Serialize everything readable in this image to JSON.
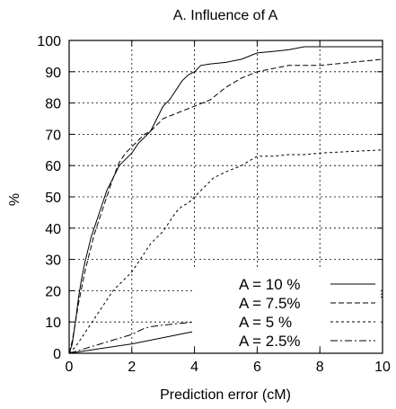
{
  "chart_data": {
    "type": "line",
    "title": "A. Influence of A",
    "xlabel": "Prediction error (cM)",
    "ylabel": "%",
    "xlim": [
      0,
      10
    ],
    "ylim": [
      0,
      100
    ],
    "x_ticks": [
      0,
      2,
      4,
      6,
      8,
      10
    ],
    "y_ticks": [
      0,
      10,
      20,
      30,
      40,
      50,
      60,
      70,
      80,
      90,
      100
    ],
    "grid": true,
    "legend_position": "bottom-right",
    "series": [
      {
        "name": "A = 10   %",
        "dash": "",
        "points": [
          [
            0,
            0
          ],
          [
            0.1,
            3
          ],
          [
            0.2,
            10
          ],
          [
            0.3,
            18
          ],
          [
            0.4,
            24
          ],
          [
            0.5,
            29
          ],
          [
            0.6,
            33
          ],
          [
            0.7,
            37
          ],
          [
            0.8,
            40
          ],
          [
            0.9,
            43
          ],
          [
            1.0,
            46
          ],
          [
            1.1,
            49
          ],
          [
            1.2,
            52
          ],
          [
            1.4,
            56
          ],
          [
            1.6,
            60
          ],
          [
            1.8,
            62
          ],
          [
            2.0,
            64
          ],
          [
            2.2,
            67
          ],
          [
            2.4,
            69
          ],
          [
            2.6,
            71
          ],
          [
            2.8,
            75
          ],
          [
            3.0,
            79
          ],
          [
            3.2,
            81
          ],
          [
            3.4,
            84
          ],
          [
            3.6,
            87
          ],
          [
            3.8,
            89
          ],
          [
            4.0,
            90
          ],
          [
            4.2,
            92
          ],
          [
            4.5,
            92.5
          ],
          [
            5.0,
            93
          ],
          [
            5.5,
            94
          ],
          [
            6.0,
            96
          ],
          [
            6.5,
            96.5
          ],
          [
            7.0,
            97
          ],
          [
            7.5,
            98
          ],
          [
            8.0,
            98
          ],
          [
            9.0,
            98
          ],
          [
            10.0,
            98
          ]
        ]
      },
      {
        "name": "A =   7.5%",
        "dash": "6 3",
        "points": [
          [
            0,
            0
          ],
          [
            0.1,
            4
          ],
          [
            0.2,
            10
          ],
          [
            0.3,
            16
          ],
          [
            0.4,
            21
          ],
          [
            0.5,
            26
          ],
          [
            0.6,
            30
          ],
          [
            0.7,
            34
          ],
          [
            0.8,
            38
          ],
          [
            1.0,
            44
          ],
          [
            1.2,
            50
          ],
          [
            1.4,
            56
          ],
          [
            1.6,
            61
          ],
          [
            1.8,
            64
          ],
          [
            2.0,
            66
          ],
          [
            2.2,
            68
          ],
          [
            2.4,
            70
          ],
          [
            2.6,
            71
          ],
          [
            2.8,
            73
          ],
          [
            3.0,
            75
          ],
          [
            3.5,
            77
          ],
          [
            4.0,
            79
          ],
          [
            4.5,
            81
          ],
          [
            5.0,
            85
          ],
          [
            5.5,
            88
          ],
          [
            6.0,
            90
          ],
          [
            6.5,
            91
          ],
          [
            7.0,
            92
          ],
          [
            7.5,
            92
          ],
          [
            8.0,
            92
          ],
          [
            9.0,
            93
          ],
          [
            10.0,
            94
          ]
        ]
      },
      {
        "name": "A =   5   %",
        "dash": "3 3",
        "points": [
          [
            0,
            0
          ],
          [
            0.2,
            2
          ],
          [
            0.4,
            5
          ],
          [
            0.6,
            8
          ],
          [
            0.8,
            11
          ],
          [
            1.0,
            14
          ],
          [
            1.2,
            17
          ],
          [
            1.4,
            20
          ],
          [
            1.6,
            22
          ],
          [
            1.8,
            24
          ],
          [
            2.0,
            26
          ],
          [
            2.2,
            29
          ],
          [
            2.4,
            32
          ],
          [
            2.6,
            35
          ],
          [
            2.8,
            37
          ],
          [
            3.0,
            39
          ],
          [
            3.2,
            42
          ],
          [
            3.4,
            45
          ],
          [
            3.6,
            47
          ],
          [
            3.8,
            48
          ],
          [
            4.0,
            50
          ],
          [
            4.2,
            52
          ],
          [
            4.4,
            54
          ],
          [
            4.6,
            56
          ],
          [
            4.8,
            57
          ],
          [
            5.0,
            58
          ],
          [
            5.5,
            60
          ],
          [
            6.0,
            63
          ],
          [
            6.5,
            63
          ],
          [
            7.0,
            63.5
          ],
          [
            7.5,
            63.5
          ],
          [
            8.0,
            64
          ],
          [
            9.0,
            64.5
          ],
          [
            10.0,
            65
          ]
        ]
      },
      {
        "name": "A =   2.5%",
        "dash": "8 3 2 3",
        "points": [
          [
            0,
            0
          ],
          [
            0.5,
            1.5
          ],
          [
            1.0,
            3
          ],
          [
            1.5,
            4.5
          ],
          [
            2.0,
            6
          ],
          [
            2.2,
            7
          ],
          [
            2.4,
            8
          ],
          [
            2.6,
            8.5
          ],
          [
            3.0,
            9
          ],
          [
            4.0,
            10
          ],
          [
            5.0,
            11
          ],
          [
            6.0,
            12
          ],
          [
            7.0,
            13.5
          ],
          [
            8.0,
            15
          ],
          [
            9.0,
            17
          ],
          [
            10.0,
            19
          ]
        ]
      },
      {
        "name": "",
        "dash": "",
        "points": [
          [
            0,
            0
          ],
          [
            1,
            1.5
          ],
          [
            2,
            3
          ],
          [
            3,
            5
          ],
          [
            4,
            7
          ],
          [
            5,
            9
          ],
          [
            6,
            11
          ],
          [
            7,
            13
          ],
          [
            8,
            15
          ],
          [
            9,
            16.5
          ],
          [
            10,
            18
          ]
        ]
      }
    ]
  }
}
